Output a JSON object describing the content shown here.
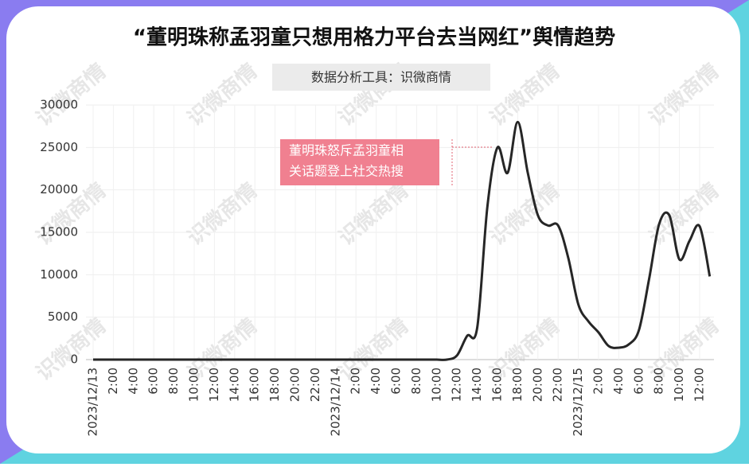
{
  "chart_data": {
    "type": "line",
    "title": "“董明珠称孟羽童只想用格力平台去当网红”舆情趋势",
    "subtitle": "数据分析工具：识微商情",
    "watermark": "识微商情",
    "annotation": [
      "董明珠怒斥孟羽童相",
      "关话题登上社交热搜"
    ],
    "categories": [
      "2023/12/13",
      null,
      "2:00",
      null,
      "4:00",
      null,
      "6:00",
      null,
      "8:00",
      null,
      "10:00",
      null,
      "12:00",
      null,
      "14:00",
      null,
      "16:00",
      null,
      "18:00",
      null,
      "20:00",
      null,
      "22:00",
      null,
      "2023/12/14",
      null,
      "2:00",
      null,
      "4:00",
      null,
      "6:00",
      null,
      "8:00",
      null,
      "10:00",
      null,
      "12:00",
      null,
      "14:00",
      null,
      "16:00",
      null,
      "18:00",
      null,
      "20:00",
      null,
      "22:00",
      null,
      "2023/12/15",
      null,
      "2:00",
      null,
      "4:00",
      null,
      "6:00",
      null,
      "8:00",
      null,
      "10:00",
      null,
      "12:00",
      null
    ],
    "series": [
      {
        "name": "舆情",
        "color": "#262626",
        "values": [
          0,
          0,
          0,
          0,
          0,
          0,
          0,
          0,
          0,
          0,
          0,
          0,
          0,
          0,
          0,
          0,
          0,
          0,
          0,
          0,
          0,
          0,
          0,
          0,
          0,
          0,
          0,
          0,
          0,
          0,
          0,
          0,
          0,
          0,
          0,
          0,
          500,
          2800,
          3800,
          18000,
          25000,
          22000,
          28000,
          22000,
          17000,
          15800,
          15800,
          12000,
          6500,
          4500,
          3200,
          1600,
          1400,
          1800,
          3500,
          9500,
          16000,
          17000,
          11800,
          14000,
          15700,
          9800
        ]
      }
    ],
    "ylim": [
      0,
      30000
    ],
    "yticks": [
      0,
      5000,
      10000,
      15000,
      20000,
      25000,
      30000
    ],
    "grid": true
  }
}
